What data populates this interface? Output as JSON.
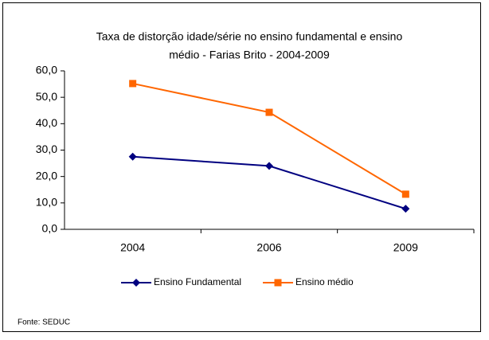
{
  "chart_data": {
    "type": "line",
    "title": [
      "Taxa de distorção idade/série no ensino fundamental e ensino",
      "médio - Farias Brito -  2004-2009"
    ],
    "categories": [
      "2004",
      "2006",
      "2009"
    ],
    "series": [
      {
        "name": "Ensino Fundamental",
        "color": "#000080",
        "marker": "diamond",
        "values": [
          27.5,
          24.0,
          7.8
        ]
      },
      {
        "name": "Ensino médio",
        "color": "#FF6600",
        "marker": "square",
        "values": [
          55.2,
          44.3,
          13.3
        ]
      }
    ],
    "ylim": [
      0,
      60
    ],
    "yticks": [
      {
        "value": 0,
        "label": "0,0"
      },
      {
        "value": 10,
        "label": "10,0"
      },
      {
        "value": 20,
        "label": "20,0"
      },
      {
        "value": 30,
        "label": "30,0"
      },
      {
        "value": 40,
        "label": "40,0"
      },
      {
        "value": 50,
        "label": "50,0"
      },
      {
        "value": 60,
        "label": "60,0"
      }
    ],
    "legend": "bottom",
    "source": "Fonte: SEDUC"
  }
}
